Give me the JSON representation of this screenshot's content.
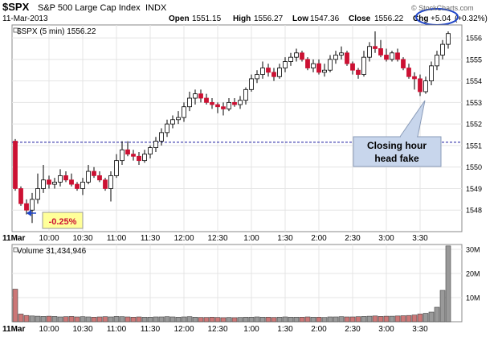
{
  "header": {
    "symbol": "$SPX",
    "name": "S&P 500 Large Cap Index",
    "exchange": "INDX",
    "date": "11-Mar-2013",
    "open_label": "Open",
    "open": "1551.15",
    "high_label": "High",
    "high": "1556.27",
    "low_label": "Low",
    "low": "1547.36",
    "close_label": "Close",
    "close": "1556.22",
    "chg_label": "Chg",
    "chg": "+5.04",
    "chg_pct": "(+0.32%)",
    "watermark": "© StockCharts.com"
  },
  "price_panel": {
    "legend": "$SPX (5 min) 1556.22"
  },
  "volume_panel": {
    "legend": "Volume 31,434,946"
  },
  "annotations": {
    "callout_line1": "Closing hour",
    "callout_line2": "head fake",
    "open_change": "-0.25%"
  },
  "colors": {
    "up": "#ffffff",
    "down": "#cc1133",
    "candle_stroke": "#000000",
    "volume_down": "#cc7777",
    "volume_up": "#999999",
    "reference_line": "#1a1aa0",
    "callout_fill": "#c8d6ec",
    "label_fill": "#ffff99"
  },
  "chart_data": [
    {
      "type": "candlestick",
      "interval": "5 min",
      "xlabel": "",
      "ylabel": "",
      "ylim": [
        1547.0,
        1556.6
      ],
      "yticks": [
        1548,
        1549,
        1550,
        1551,
        1552,
        1553,
        1554,
        1555,
        1556
      ],
      "xticks": [
        "11Mar",
        "10:00",
        "10:30",
        "11:00",
        "11:30",
        "12:00",
        "12:30",
        "1:00",
        "1:30",
        "2:00",
        "2:30",
        "3:00",
        "3:30"
      ],
      "reference_line": 1551.15,
      "grid": true,
      "x": [
        "9:30",
        "9:35",
        "9:40",
        "9:45",
        "9:50",
        "9:55",
        "10:00",
        "10:05",
        "10:10",
        "10:15",
        "10:20",
        "10:25",
        "10:30",
        "10:35",
        "10:40",
        "10:45",
        "10:50",
        "10:55",
        "11:00",
        "11:05",
        "11:10",
        "11:15",
        "11:20",
        "11:25",
        "11:30",
        "11:35",
        "11:40",
        "11:45",
        "11:50",
        "11:55",
        "12:00",
        "12:05",
        "12:10",
        "12:15",
        "12:20",
        "12:25",
        "12:30",
        "12:35",
        "12:40",
        "12:45",
        "12:50",
        "12:55",
        "1:00",
        "1:05",
        "1:10",
        "1:15",
        "1:20",
        "1:25",
        "1:30",
        "1:35",
        "1:40",
        "1:45",
        "1:50",
        "1:55",
        "2:00",
        "2:05",
        "2:10",
        "2:15",
        "2:20",
        "2:25",
        "2:30",
        "2:35",
        "2:40",
        "2:45",
        "2:50",
        "2:55",
        "3:00",
        "3:05",
        "3:10",
        "3:15",
        "3:20",
        "3:25",
        "3:30",
        "3:35",
        "3:40",
        "3:45",
        "3:50",
        "3:55"
      ],
      "open": [
        1551.2,
        1549.0,
        1548.3,
        1548.0,
        1548.5,
        1549.0,
        1549.4,
        1549.2,
        1549.3,
        1549.6,
        1549.4,
        1549.2,
        1549.0,
        1549.3,
        1549.8,
        1549.6,
        1549.4,
        1549.0,
        1549.6,
        1550.3,
        1550.8,
        1550.6,
        1550.5,
        1550.3,
        1550.6,
        1550.9,
        1551.2,
        1551.6,
        1552.0,
        1552.2,
        1552.3,
        1552.8,
        1553.2,
        1553.4,
        1553.2,
        1553.0,
        1552.9,
        1552.8,
        1552.7,
        1553.0,
        1552.9,
        1553.1,
        1553.6,
        1554.1,
        1554.3,
        1554.6,
        1554.4,
        1554.2,
        1554.6,
        1554.9,
        1555.1,
        1555.3,
        1555.0,
        1554.6,
        1554.8,
        1554.4,
        1554.5,
        1555.0,
        1555.2,
        1555.3,
        1554.8,
        1554.5,
        1554.3,
        1555.1,
        1555.6,
        1555.5,
        1555.2,
        1555.0,
        1555.3,
        1555.0,
        1554.6,
        1554.2,
        1554.1,
        1553.5,
        1554.0,
        1554.7,
        1555.2,
        1555.7
      ],
      "high": [
        1551.3,
        1549.1,
        1548.5,
        1548.8,
        1549.7,
        1550.1,
        1549.6,
        1549.5,
        1549.9,
        1549.8,
        1549.7,
        1549.3,
        1549.5,
        1550.1,
        1550.0,
        1549.8,
        1549.5,
        1549.8,
        1550.6,
        1551.2,
        1551.2,
        1550.8,
        1550.7,
        1550.8,
        1551.0,
        1551.4,
        1551.8,
        1552.2,
        1552.4,
        1552.6,
        1553.0,
        1553.5,
        1553.6,
        1553.6,
        1553.4,
        1553.2,
        1553.0,
        1553.0,
        1553.2,
        1553.2,
        1553.3,
        1553.7,
        1554.3,
        1554.5,
        1554.9,
        1554.8,
        1554.6,
        1554.8,
        1555.1,
        1555.3,
        1555.5,
        1555.4,
        1555.1,
        1555.0,
        1555.0,
        1554.8,
        1555.2,
        1555.4,
        1555.6,
        1555.4,
        1554.9,
        1554.6,
        1555.4,
        1555.8,
        1556.3,
        1555.9,
        1555.5,
        1555.4,
        1555.5,
        1555.1,
        1554.8,
        1554.4,
        1554.3,
        1554.2,
        1554.9,
        1555.4,
        1555.9,
        1556.3
      ],
      "low": [
        1548.9,
        1548.2,
        1547.8,
        1547.4,
        1548.3,
        1548.8,
        1549.0,
        1549.0,
        1549.1,
        1549.3,
        1549.1,
        1548.9,
        1548.7,
        1549.2,
        1549.5,
        1549.3,
        1548.9,
        1548.4,
        1549.5,
        1550.1,
        1550.5,
        1550.3,
        1550.1,
        1550.2,
        1550.4,
        1550.7,
        1551.0,
        1551.4,
        1551.8,
        1552.0,
        1552.1,
        1552.6,
        1552.9,
        1553.0,
        1552.9,
        1552.7,
        1552.5,
        1552.4,
        1552.6,
        1552.8,
        1552.7,
        1552.9,
        1553.5,
        1553.9,
        1554.1,
        1554.2,
        1554.0,
        1554.1,
        1554.4,
        1554.7,
        1554.9,
        1554.9,
        1554.5,
        1554.4,
        1554.3,
        1554.2,
        1554.4,
        1554.8,
        1555.0,
        1554.7,
        1554.3,
        1554.1,
        1554.2,
        1554.9,
        1555.3,
        1555.1,
        1554.9,
        1554.9,
        1554.9,
        1554.5,
        1554.1,
        1553.6,
        1553.3,
        1553.4,
        1553.8,
        1554.5,
        1555.0,
        1555.5
      ],
      "close": [
        1549.0,
        1548.3,
        1548.0,
        1548.5,
        1549.0,
        1549.4,
        1549.2,
        1549.3,
        1549.6,
        1549.4,
        1549.2,
        1549.0,
        1549.3,
        1549.8,
        1549.6,
        1549.4,
        1549.0,
        1549.6,
        1550.3,
        1550.8,
        1550.6,
        1550.5,
        1550.3,
        1550.6,
        1550.9,
        1551.2,
        1551.6,
        1552.0,
        1552.2,
        1552.3,
        1552.8,
        1553.2,
        1553.4,
        1553.2,
        1553.0,
        1552.9,
        1552.8,
        1552.7,
        1553.0,
        1552.9,
        1553.1,
        1553.6,
        1554.1,
        1554.3,
        1554.6,
        1554.4,
        1554.2,
        1554.6,
        1554.9,
        1555.1,
        1555.3,
        1555.0,
        1554.6,
        1554.8,
        1554.4,
        1554.5,
        1555.0,
        1555.2,
        1555.3,
        1554.8,
        1554.5,
        1554.3,
        1555.1,
        1555.6,
        1555.5,
        1555.2,
        1555.0,
        1555.3,
        1555.0,
        1554.6,
        1554.2,
        1554.1,
        1553.5,
        1554.0,
        1554.7,
        1555.2,
        1555.7,
        1556.2
      ]
    },
    {
      "type": "bar",
      "series_name": "Volume",
      "yticks": [
        "10M",
        "20M",
        "30M"
      ],
      "ylim": [
        0,
        32
      ],
      "unit": "M",
      "values": [
        13.5,
        3.2,
        2.6,
        2.4,
        2.3,
        2.2,
        2.3,
        2.2,
        2.0,
        2.1,
        2.2,
        2.0,
        2.1,
        2.0,
        1.9,
        2.0,
        2.1,
        2.0,
        2.2,
        2.1,
        2.0,
        1.9,
        2.0,
        1.9,
        1.9,
        2.0,
        2.0,
        2.1,
        2.0,
        1.9,
        2.0,
        2.1,
        1.9,
        1.8,
        1.8,
        1.9,
        1.8,
        1.7,
        1.8,
        1.7,
        1.8,
        1.9,
        1.9,
        2.0,
        1.9,
        1.9,
        1.8,
        1.9,
        2.0,
        1.9,
        1.9,
        1.9,
        2.0,
        1.9,
        1.9,
        1.8,
        2.0,
        2.0,
        2.1,
        2.0,
        2.0,
        2.1,
        2.2,
        2.3,
        2.4,
        2.2,
        2.3,
        2.3,
        2.4,
        2.5,
        2.6,
        2.8,
        3.2,
        3.5,
        4.0,
        6.0,
        13.0,
        31.4
      ]
    }
  ]
}
